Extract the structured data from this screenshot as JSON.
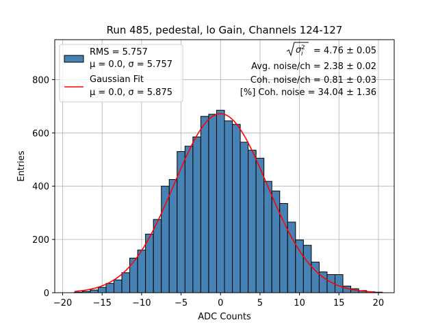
{
  "chart_data": {
    "type": "bar",
    "title": "Run 485, pedestal, lo Gain, Channels 124-127",
    "xlabel": "ADC Counts",
    "ylabel": "Entries",
    "xlim": [
      -21,
      22
    ],
    "ylim": [
      0,
      950
    ],
    "grid": true,
    "x_ticks": [
      -20,
      -15,
      -10,
      -5,
      0,
      5,
      10,
      15,
      20
    ],
    "y_ticks": [
      0,
      200,
      400,
      600,
      800
    ],
    "bin_edges_start": -18.5,
    "bin_width": 1,
    "bin_counts": [
      2,
      5,
      10,
      20,
      35,
      48,
      75,
      130,
      160,
      220,
      275,
      400,
      425,
      530,
      550,
      585,
      662,
      670,
      685,
      645,
      632,
      565,
      535,
      505,
      418,
      382,
      335,
      265,
      198,
      178,
      115,
      78,
      68,
      68,
      25,
      15,
      8,
      4,
      2
    ],
    "bar_color": "#4682b4",
    "fit": {
      "name": "Gaussian Fit",
      "mu": 0.0,
      "sigma": 5.875,
      "amplitude": 672,
      "x_range": [
        -18.5,
        19.5
      ],
      "color": "#ff0000"
    },
    "legend": {
      "position": "upper-left",
      "entries": [
        {
          "line1": "RMS = 5.757",
          "line2": "μ = 0.0, σ = 5.757",
          "kind": "patch"
        },
        {
          "line1": "Gaussian Fit",
          "line2": "μ = 0.0, σ = 5.875",
          "kind": "line"
        }
      ]
    },
    "annotations": {
      "sqrt_label_value": " = 4.76 ± 0.05",
      "avg_noise": "Avg. noise/ch = 2.38 ± 0.02",
      "coh_noise": "Coh. noise/ch = 0.81 ± 0.03",
      "pct_coh_noise": "[%] Coh. noise = 34.04 ± 1.36"
    }
  }
}
